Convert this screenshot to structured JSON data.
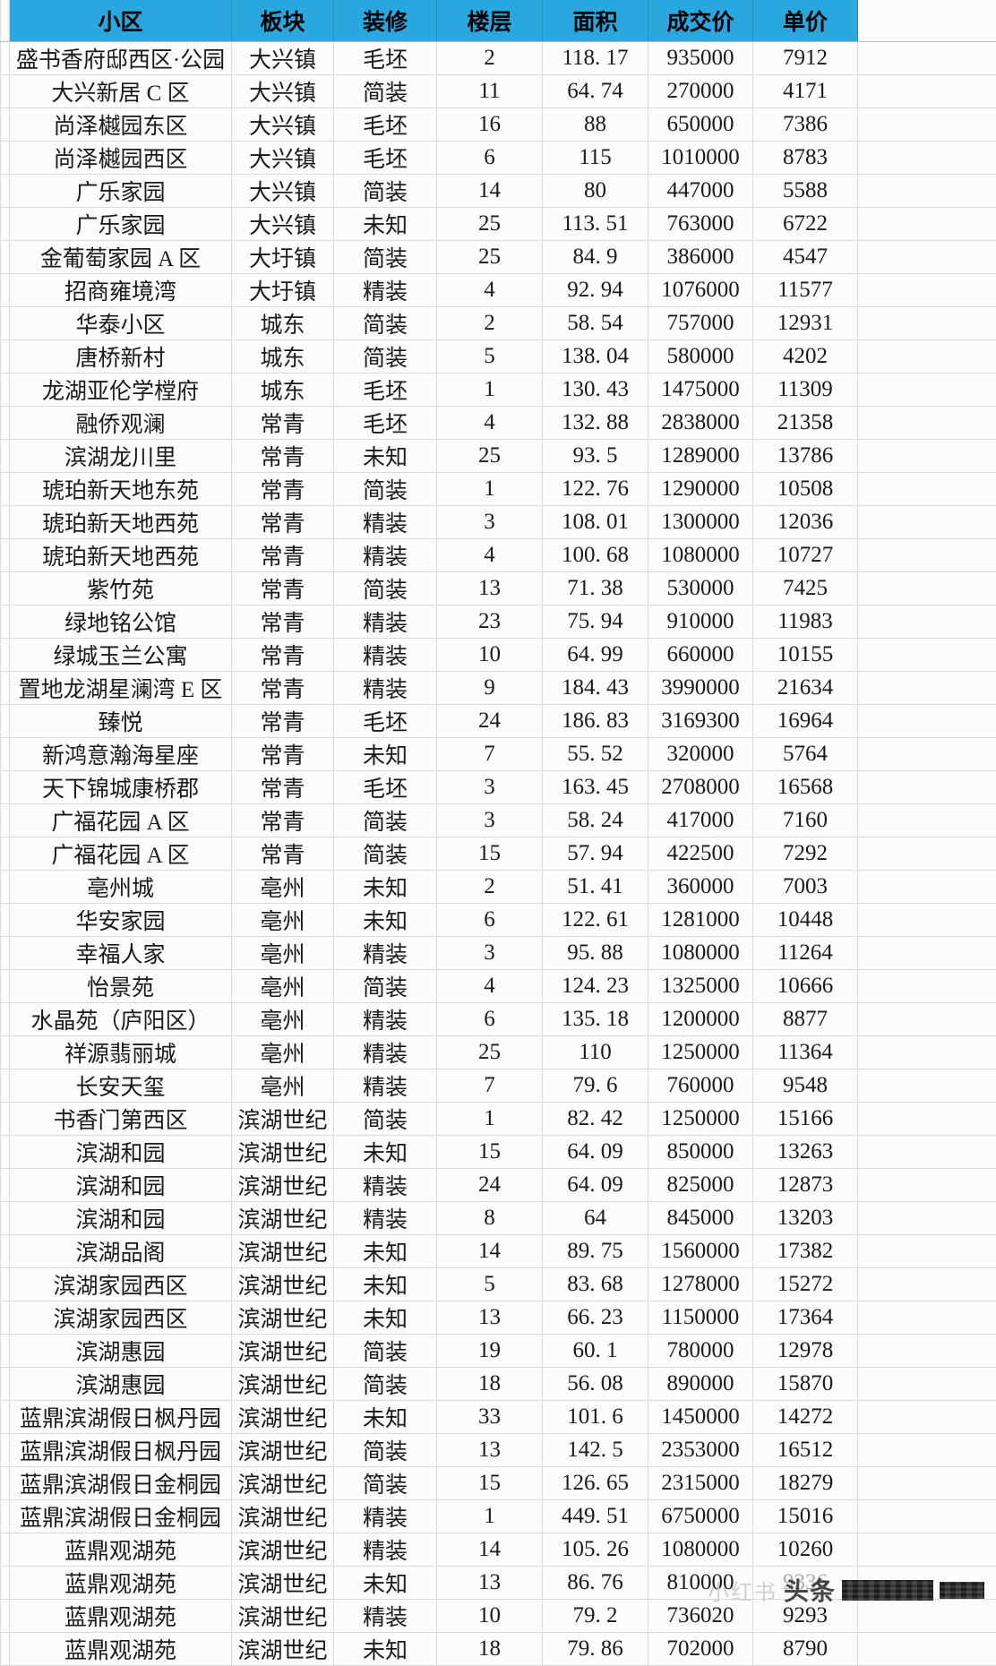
{
  "table": {
    "columns": [
      "小区",
      "板块",
      "装修",
      "楼层",
      "面积",
      "成交价",
      "单价"
    ],
    "rows": [
      [
        "盛书香府邸西区·公园",
        "大兴镇",
        "毛坯",
        "2",
        "118.17",
        "935000",
        "7912"
      ],
      [
        "大兴新居 C 区",
        "大兴镇",
        "简装",
        "11",
        "64.74",
        "270000",
        "4171"
      ],
      [
        "尚泽樾园东区",
        "大兴镇",
        "毛坯",
        "16",
        "88",
        "650000",
        "7386"
      ],
      [
        "尚泽樾园西区",
        "大兴镇",
        "毛坯",
        "6",
        "115",
        "1010000",
        "8783"
      ],
      [
        "广乐家园",
        "大兴镇",
        "简装",
        "14",
        "80",
        "447000",
        "5588"
      ],
      [
        "广乐家园",
        "大兴镇",
        "未知",
        "25",
        "113.51",
        "763000",
        "6722"
      ],
      [
        "金葡萄家园 A 区",
        "大圩镇",
        "简装",
        "25",
        "84.9",
        "386000",
        "4547"
      ],
      [
        "招商雍境湾",
        "大圩镇",
        "精装",
        "4",
        "92.94",
        "1076000",
        "11577"
      ],
      [
        "华泰小区",
        "城东",
        "简装",
        "2",
        "58.54",
        "757000",
        "12931"
      ],
      [
        "唐桥新村",
        "城东",
        "简装",
        "5",
        "138.04",
        "580000",
        "4202"
      ],
      [
        "龙湖亚伦学樘府",
        "城东",
        "毛坯",
        "1",
        "130.43",
        "1475000",
        "11309"
      ],
      [
        "融侨观澜",
        "常青",
        "毛坯",
        "4",
        "132.88",
        "2838000",
        "21358"
      ],
      [
        "滨湖龙川里",
        "常青",
        "未知",
        "25",
        "93.5",
        "1289000",
        "13786"
      ],
      [
        "琥珀新天地东苑",
        "常青",
        "简装",
        "1",
        "122.76",
        "1290000",
        "10508"
      ],
      [
        "琥珀新天地西苑",
        "常青",
        "精装",
        "3",
        "108.01",
        "1300000",
        "12036"
      ],
      [
        "琥珀新天地西苑",
        "常青",
        "精装",
        "4",
        "100.68",
        "1080000",
        "10727"
      ],
      [
        "紫竹苑",
        "常青",
        "简装",
        "13",
        "71.38",
        "530000",
        "7425"
      ],
      [
        "绿地铭公馆",
        "常青",
        "精装",
        "23",
        "75.94",
        "910000",
        "11983"
      ],
      [
        "绿城玉兰公寓",
        "常青",
        "精装",
        "10",
        "64.99",
        "660000",
        "10155"
      ],
      [
        "置地龙湖星澜湾 E 区",
        "常青",
        "精装",
        "9",
        "184.43",
        "3990000",
        "21634"
      ],
      [
        "臻悦",
        "常青",
        "毛坯",
        "24",
        "186.83",
        "3169300",
        "16964"
      ],
      [
        "新鸿意瀚海星座",
        "常青",
        "未知",
        "7",
        "55.52",
        "320000",
        "5764"
      ],
      [
        "天下锦城康桥郡",
        "常青",
        "毛坯",
        "3",
        "163.45",
        "2708000",
        "16568"
      ],
      [
        "广福花园 A 区",
        "常青",
        "简装",
        "3",
        "58.24",
        "417000",
        "7160"
      ],
      [
        "广福花园 A 区",
        "常青",
        "简装",
        "15",
        "57.94",
        "422500",
        "7292"
      ],
      [
        "亳州城",
        "亳州",
        "未知",
        "2",
        "51.41",
        "360000",
        "7003"
      ],
      [
        "华安家园",
        "亳州",
        "未知",
        "6",
        "122.61",
        "1281000",
        "10448"
      ],
      [
        "幸福人家",
        "亳州",
        "精装",
        "3",
        "95.88",
        "1080000",
        "11264"
      ],
      [
        "怡景苑",
        "亳州",
        "简装",
        "4",
        "124.23",
        "1325000",
        "10666"
      ],
      [
        "水晶苑（庐阳区）",
        "亳州",
        "精装",
        "6",
        "135.18",
        "1200000",
        "8877"
      ],
      [
        "祥源翡丽城",
        "亳州",
        "精装",
        "25",
        "110",
        "1250000",
        "11364"
      ],
      [
        "长安天玺",
        "亳州",
        "精装",
        "7",
        "79.6",
        "760000",
        "9548"
      ],
      [
        "书香门第西区",
        "滨湖世纪",
        "简装",
        "1",
        "82.42",
        "1250000",
        "15166"
      ],
      [
        "滨湖和园",
        "滨湖世纪",
        "未知",
        "15",
        "64.09",
        "850000",
        "13263"
      ],
      [
        "滨湖和园",
        "滨湖世纪",
        "精装",
        "24",
        "64.09",
        "825000",
        "12873"
      ],
      [
        "滨湖和园",
        "滨湖世纪",
        "精装",
        "8",
        "64",
        "845000",
        "13203"
      ],
      [
        "滨湖品阁",
        "滨湖世纪",
        "未知",
        "14",
        "89.75",
        "1560000",
        "17382"
      ],
      [
        "滨湖家园西区",
        "滨湖世纪",
        "未知",
        "5",
        "83.68",
        "1278000",
        "15272"
      ],
      [
        "滨湖家园西区",
        "滨湖世纪",
        "未知",
        "13",
        "66.23",
        "1150000",
        "17364"
      ],
      [
        "滨湖惠园",
        "滨湖世纪",
        "简装",
        "19",
        "60.1",
        "780000",
        "12978"
      ],
      [
        "滨湖惠园",
        "滨湖世纪",
        "简装",
        "18",
        "56.08",
        "890000",
        "15870"
      ],
      [
        "蓝鼎滨湖假日枫丹园",
        "滨湖世纪",
        "未知",
        "33",
        "101.6",
        "1450000",
        "14272"
      ],
      [
        "蓝鼎滨湖假日枫丹园",
        "滨湖世纪",
        "简装",
        "13",
        "142.5",
        "2353000",
        "16512"
      ],
      [
        "蓝鼎滨湖假日金桐园",
        "滨湖世纪",
        "简装",
        "15",
        "126.65",
        "2315000",
        "18279"
      ],
      [
        "蓝鼎滨湖假日金桐园",
        "滨湖世纪",
        "精装",
        "1",
        "449.51",
        "6750000",
        "15016"
      ],
      [
        "蓝鼎观湖苑",
        "滨湖世纪",
        "精装",
        "14",
        "105.26",
        "1080000",
        "10260"
      ],
      [
        "蓝鼎观湖苑",
        "滨湖世纪",
        "未知",
        "13",
        "86.76",
        "810000",
        "9336"
      ],
      [
        "蓝鼎观湖苑",
        "滨湖世纪",
        "精装",
        "10",
        "79.2",
        "736020",
        "9293"
      ],
      [
        "蓝鼎观湖苑",
        "滨湖世纪",
        "未知",
        "18",
        "79.86",
        "702000",
        "8790"
      ]
    ]
  },
  "watermark": {
    "faint_text": "小红书",
    "brand_text": "头条",
    "faded_unit_price_row_index": 46
  },
  "colors": {
    "header_bg": "#2ba7df",
    "header_text": "#000000",
    "grid_line": "#d9d9d9",
    "cell_text": "#1a1a1a",
    "faded_text": "#adadad",
    "redaction": "#1c1c1c"
  }
}
